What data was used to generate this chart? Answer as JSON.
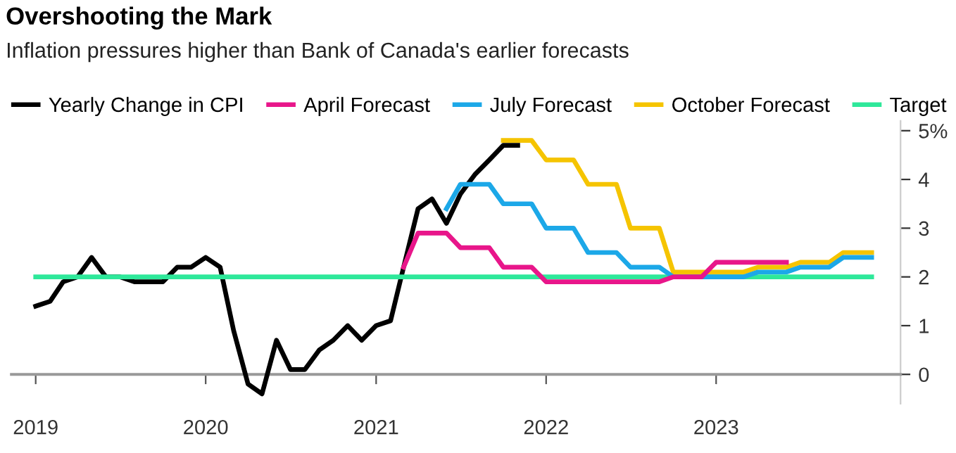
{
  "chart_data": {
    "type": "line",
    "title": "Overshooting the Mark",
    "subtitle": "Inflation pressures higher than Bank of Canada's earlier forecasts",
    "series": [
      {
        "name": "Yearly Change in CPI",
        "color": "#000000",
        "x": [
          "2019-01",
          "2019-02",
          "2019-03",
          "2019-04",
          "2019-05",
          "2019-06",
          "2019-07",
          "2019-08",
          "2019-09",
          "2019-10",
          "2019-11",
          "2019-12",
          "2020-01",
          "2020-02",
          "2020-03",
          "2020-04",
          "2020-05",
          "2020-06",
          "2020-07",
          "2020-08",
          "2020-09",
          "2020-10",
          "2020-11",
          "2020-12",
          "2021-01",
          "2021-02",
          "2021-03",
          "2021-04",
          "2021-05",
          "2021-06",
          "2021-07",
          "2021-08",
          "2021-09",
          "2021-10",
          "2021-11"
        ],
        "values": [
          1.4,
          1.5,
          1.9,
          2.0,
          2.4,
          2.0,
          2.0,
          1.9,
          1.9,
          1.9,
          2.2,
          2.2,
          2.4,
          2.2,
          0.9,
          -0.2,
          -0.4,
          0.7,
          0.1,
          0.1,
          0.5,
          0.7,
          1.0,
          0.7,
          1.0,
          1.1,
          2.2,
          3.4,
          3.6,
          3.1,
          3.7,
          4.1,
          4.4,
          4.7,
          4.7
        ]
      },
      {
        "name": "April Forecast",
        "color": "#e8168a",
        "x": [
          "2021-03",
          "2021-04",
          "2021-05",
          "2021-06",
          "2021-07",
          "2021-08",
          "2021-09",
          "2021-10",
          "2021-11",
          "2021-12",
          "2022-01",
          "2022-02",
          "2022-03",
          "2022-04",
          "2022-05",
          "2022-06",
          "2022-07",
          "2022-08",
          "2022-09",
          "2022-10",
          "2022-11",
          "2022-12",
          "2023-01",
          "2023-02",
          "2023-03",
          "2023-04",
          "2023-05",
          "2023-06"
        ],
        "values": [
          2.2,
          2.9,
          2.9,
          2.9,
          2.6,
          2.6,
          2.6,
          2.2,
          2.2,
          2.2,
          1.9,
          1.9,
          1.9,
          1.9,
          1.9,
          1.9,
          1.9,
          1.9,
          1.9,
          2.0,
          2.0,
          2.0,
          2.3,
          2.3,
          2.3,
          2.3,
          2.3,
          2.3
        ]
      },
      {
        "name": "July Forecast",
        "color": "#1ca8e8",
        "x": [
          "2021-06",
          "2021-07",
          "2021-08",
          "2021-09",
          "2021-10",
          "2021-11",
          "2021-12",
          "2022-01",
          "2022-02",
          "2022-03",
          "2022-04",
          "2022-05",
          "2022-06",
          "2022-07",
          "2022-08",
          "2022-09",
          "2022-10",
          "2022-11",
          "2022-12",
          "2023-01",
          "2023-02",
          "2023-03",
          "2023-04",
          "2023-05",
          "2023-06",
          "2023-07",
          "2023-08",
          "2023-09",
          "2023-10",
          "2023-11",
          "2023-12"
        ],
        "values": [
          3.4,
          3.9,
          3.9,
          3.9,
          3.5,
          3.5,
          3.5,
          3.0,
          3.0,
          3.0,
          2.5,
          2.5,
          2.5,
          2.2,
          2.2,
          2.2,
          2.0,
          2.0,
          2.0,
          2.0,
          2.0,
          2.0,
          2.1,
          2.1,
          2.1,
          2.2,
          2.2,
          2.2,
          2.4,
          2.4,
          2.4
        ]
      },
      {
        "name": "October Forecast",
        "color": "#f5c400",
        "x": [
          "2021-10",
          "2021-11",
          "2021-12",
          "2022-01",
          "2022-02",
          "2022-03",
          "2022-04",
          "2022-05",
          "2022-06",
          "2022-07",
          "2022-08",
          "2022-09",
          "2022-10",
          "2022-11",
          "2022-12",
          "2023-01",
          "2023-02",
          "2023-03",
          "2023-04",
          "2023-05",
          "2023-06",
          "2023-07",
          "2023-08",
          "2023-09",
          "2023-10",
          "2023-11",
          "2023-12"
        ],
        "values": [
          4.8,
          4.8,
          4.8,
          4.4,
          4.4,
          4.4,
          3.9,
          3.9,
          3.9,
          3.0,
          3.0,
          3.0,
          2.1,
          2.1,
          2.1,
          2.1,
          2.1,
          2.1,
          2.2,
          2.2,
          2.2,
          2.3,
          2.3,
          2.3,
          2.5,
          2.5,
          2.5
        ]
      },
      {
        "name": "Target",
        "color": "#2ee89a",
        "x": [
          "2019-01",
          "2023-12"
        ],
        "values": [
          2,
          2
        ]
      }
    ],
    "xlim": [
      "2018-11-10",
      "2024-02-01"
    ],
    "xticks": [
      "2019",
      "2020",
      "2021",
      "2022",
      "2023"
    ],
    "ylim": [
      -0.6,
      5.2
    ],
    "yticks": [
      0,
      1,
      2,
      3,
      4,
      {
        "value": 5,
        "label": "5%"
      }
    ],
    "grid": false,
    "legend": "top left",
    "marker": "none",
    "line_style": "solid"
  }
}
